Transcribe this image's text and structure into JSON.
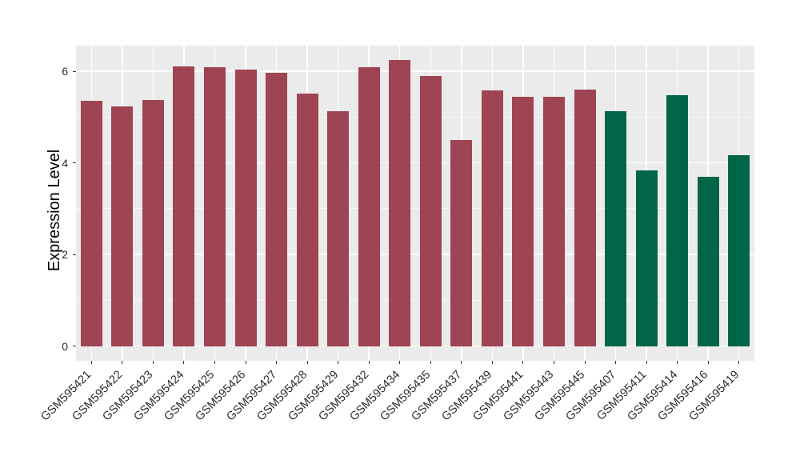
{
  "chart_data": {
    "type": "bar",
    "title": "",
    "xlabel": "",
    "ylabel": "Expression Level",
    "categories": [
      "GSM595421",
      "GSM595422",
      "GSM595423",
      "GSM595424",
      "GSM595425",
      "GSM595426",
      "GSM595427",
      "GSM595428",
      "GSM595429",
      "GSM595432",
      "GSM595434",
      "GSM595435",
      "GSM595437",
      "GSM595439",
      "GSM595441",
      "GSM595443",
      "GSM595445",
      "GSM595407",
      "GSM595411",
      "GSM595414",
      "GSM595416",
      "GSM595419"
    ],
    "values": [
      5.36,
      5.24,
      5.37,
      6.11,
      6.08,
      6.04,
      5.97,
      5.51,
      5.12,
      6.09,
      6.25,
      5.89,
      4.5,
      5.59,
      5.44,
      5.44,
      5.6,
      5.12,
      3.83,
      5.47,
      3.69,
      4.17
    ],
    "groups": [
      0,
      0,
      0,
      0,
      0,
      0,
      0,
      0,
      0,
      0,
      0,
      0,
      0,
      0,
      0,
      0,
      0,
      1,
      1,
      1,
      1,
      1
    ],
    "group_colors": [
      "#9E4452",
      "#006647"
    ],
    "yticks": [
      0,
      2,
      4,
      6
    ],
    "ytick_labels": [
      "0",
      "2",
      "4",
      "6"
    ],
    "yticks_minor": [
      1,
      3,
      5
    ],
    "ylim": [
      -0.32,
      6.56
    ],
    "grid": true,
    "legend_position": "none",
    "colors": {
      "background": "#FFFFFF",
      "panel_bg": "#EBEBEB",
      "grid_major": "#FFFFFF",
      "grid_minor": "#FFFFFF",
      "axis_text": "#2B2B2B",
      "axis_title": "#000000",
      "tick_mark": "#333333"
    }
  }
}
